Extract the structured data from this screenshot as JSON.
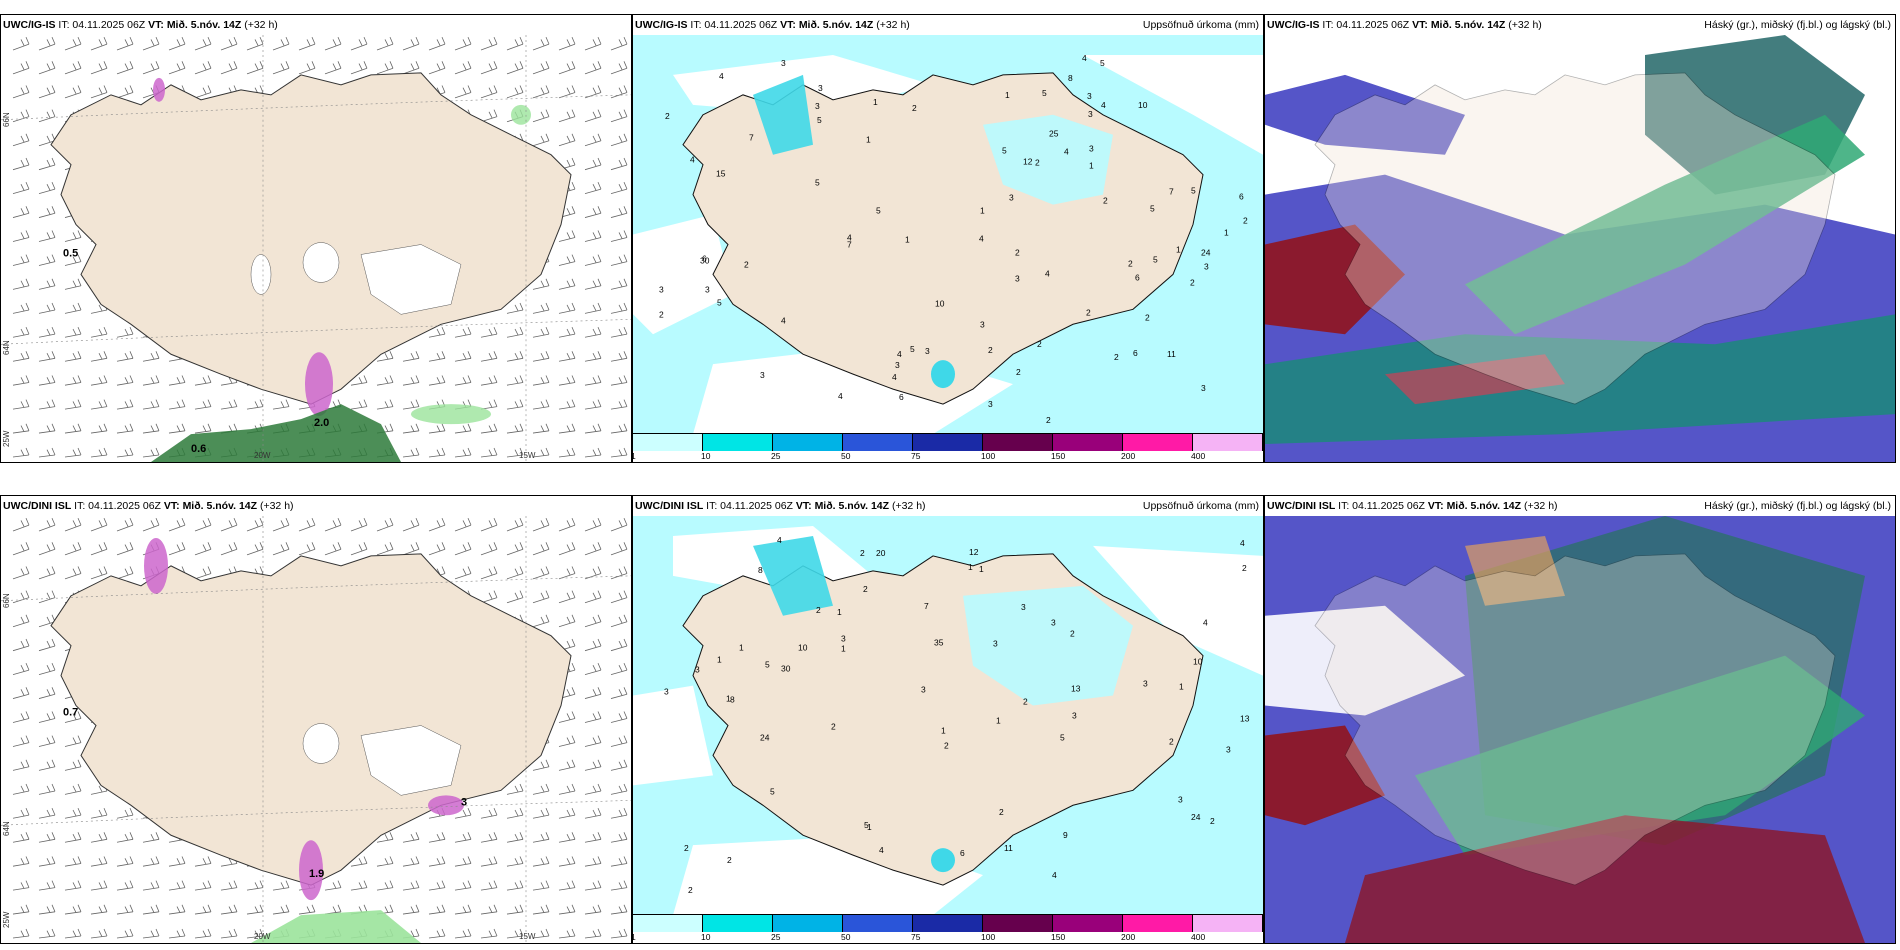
{
  "rows": [
    {
      "model": "UWC/IG-IS",
      "it": "IT: 04.11.2025 06Z",
      "vt_label": "VT:",
      "vt": "Mið. 5.nóv. 14Z",
      "lead": "(+32 h)",
      "wind_labels": [
        "0.5",
        "0.6",
        "2.0"
      ],
      "precip_numbers": [
        "3",
        "2",
        "2",
        "2",
        "2",
        "3",
        "3",
        "4",
        "5",
        "6",
        "10",
        "7",
        "4",
        "2",
        "24",
        "5",
        "3",
        "2",
        "7",
        "6",
        "5",
        "8",
        "10",
        "5",
        "3",
        "4",
        "3",
        "4",
        "6",
        "12",
        "15",
        "11",
        "25",
        "4",
        "2",
        "3",
        "5",
        "3",
        "2",
        "1",
        "3",
        "6",
        "4",
        "5",
        "4",
        "1",
        "3",
        "5",
        "4",
        "3",
        "30",
        "3",
        "5",
        "2",
        "4",
        "5",
        "4",
        "6",
        "3",
        "5",
        "3",
        "1",
        "2",
        "2",
        "3",
        "1",
        "1",
        "2",
        "2",
        "2",
        "4",
        "1",
        "2",
        "3",
        "4",
        "7",
        "5",
        "3",
        "1",
        "2",
        "2",
        "1"
      ]
    },
    {
      "model": "UWC/DINI ISL",
      "it": "IT: 04.11.2025 06Z",
      "vt_label": "VT:",
      "vt": "Mið. 5.nóv. 14Z",
      "lead": "(+32 h)",
      "wind_labels": [
        "0.7",
        "1.9",
        "3"
      ],
      "precip_numbers": [
        "2",
        "3",
        "2",
        "2",
        "1",
        "1",
        "4",
        "12",
        "8",
        "30",
        "35",
        "4",
        "13",
        "6",
        "3",
        "5",
        "2",
        "9",
        "13",
        "10",
        "5",
        "7",
        "11",
        "10",
        "24",
        "20",
        "8",
        "5",
        "4",
        "3",
        "2",
        "2",
        "3",
        "1",
        "4",
        "3",
        "2",
        "1",
        "5",
        "3",
        "2",
        "2",
        "1",
        "3",
        "1",
        "3",
        "2",
        "1",
        "4",
        "1",
        "2",
        "1",
        "3",
        "1",
        "2",
        "1",
        "24",
        "2",
        "2",
        "3",
        "3"
      ]
    }
  ],
  "precip_title": "Uppsöfnuð úrkoma (mm)",
  "cloud_title": "Háský (gr.), miðský (fj.bl.) og lágský (bl.)",
  "colorbar": {
    "labels": [
      "1",
      "10",
      "25",
      "50",
      "75",
      "100",
      "150",
      "200",
      "400"
    ],
    "colors": [
      "#ccffff",
      "#00e5e5",
      "#00b3e6",
      "#2a55d9",
      "#1a2aa6",
      "#66004d",
      "#99007a",
      "#ff1aa6",
      "#f5b3f5"
    ]
  },
  "axis": {
    "lat_66": "66N",
    "lat_64": "64N",
    "lon_25": "25W",
    "lon_20": "20W",
    "lon_15": "15W"
  },
  "colors": {
    "land": "#f2e5d5",
    "precip_light": "#b8fbff",
    "cloud_high_green": "#2fa874",
    "cloud_mid_blue": "#5555c8",
    "cloud_low_red": "#8b1a2e"
  }
}
